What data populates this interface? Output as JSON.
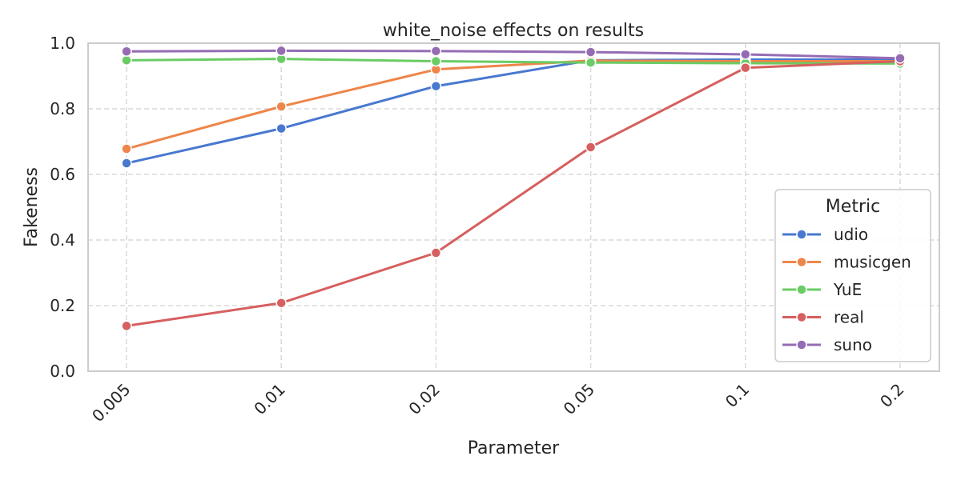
{
  "chart_data": {
    "type": "line",
    "title": "white_noise effects on results",
    "xlabel": "Parameter",
    "ylabel": "Fakeness",
    "categories": [
      "0.005",
      "0.01",
      "0.02",
      "0.05",
      "0.1",
      "0.2"
    ],
    "ylim": [
      0,
      1
    ],
    "yticks": [
      "0.0",
      "0.2",
      "0.4",
      "0.6",
      "0.8",
      "1.0"
    ],
    "grid": true,
    "legend": {
      "title": "Metric",
      "placement": "lower-right"
    },
    "series": [
      {
        "name": "udio",
        "color": "#4878d0",
        "values": [
          0.634,
          0.74,
          0.869,
          0.948,
          0.95,
          0.95
        ]
      },
      {
        "name": "musicgen",
        "color": "#ee854a",
        "values": [
          0.678,
          0.807,
          0.92,
          0.947,
          0.945,
          0.945
        ]
      },
      {
        "name": "YuE",
        "color": "#6acc64",
        "values": [
          0.948,
          0.952,
          0.945,
          0.941,
          0.939,
          0.938
        ]
      },
      {
        "name": "real",
        "color": "#d65f5f",
        "values": [
          0.138,
          0.208,
          0.361,
          0.683,
          0.925,
          0.945
        ]
      },
      {
        "name": "suno",
        "color": "#956cb4",
        "values": [
          0.975,
          0.977,
          0.976,
          0.973,
          0.966,
          0.954
        ]
      }
    ]
  }
}
